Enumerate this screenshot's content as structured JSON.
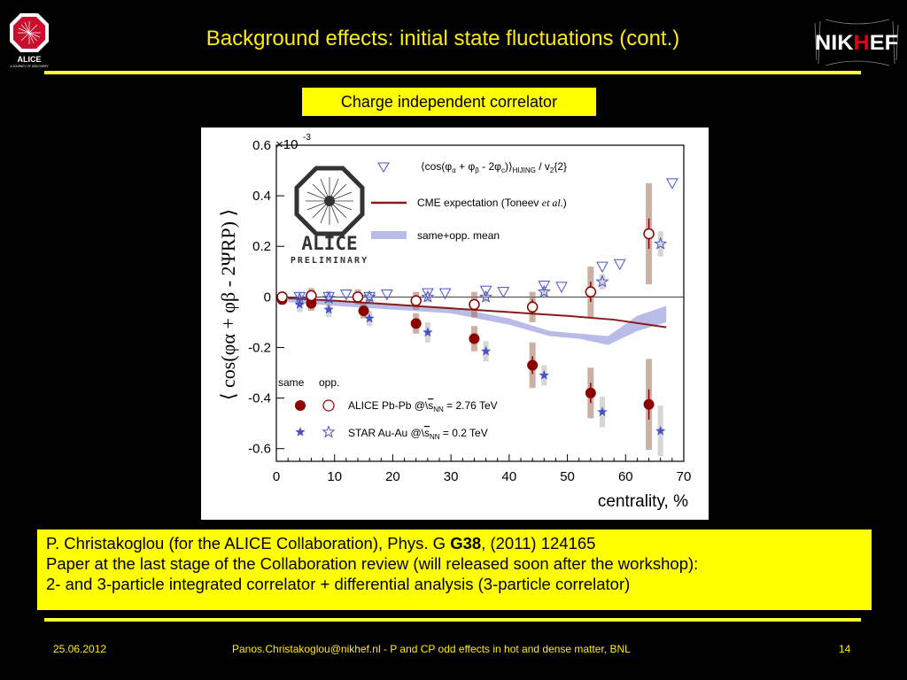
{
  "slide": {
    "title": "Background effects: initial state fluctuations (cont.)",
    "chart_label": "Charge independent correlator",
    "reference": {
      "line1_pre": "P. Christakoglou (for the ALICE Collaboration), Phys. G ",
      "line1_bold": "G38",
      "line1_post": ", (2011) 124165",
      "line2": "Paper at the last stage of the Collaboration review (will released soon after the workshop):",
      "line3": "2- and 3-particle integrated correlator + differential analysis (3-particle correlator)"
    },
    "footer": {
      "date": "25.06.2012",
      "center": "Panos.Christakoglou@nikhef.nl - P and CP odd effects in hot and dense matter, BNL",
      "page": "14"
    },
    "logos": {
      "alice_text": "ALICE",
      "alice_sub": "A JOURNEY OF DISCOVERY",
      "nikhef_text": "NIKHEF",
      "preliminary_alice": "ALICE",
      "preliminary_word": "PRELIMINARY"
    }
  },
  "colors": {
    "background": "#000000",
    "title": "#ffeb0a",
    "box": "#ffff00",
    "alice_red": "#8b0000",
    "star_blue": "#4a52c8",
    "hijing_band": "#b8bce6",
    "cme_line": "#8b1a1a"
  },
  "chart_data": {
    "type": "scatter",
    "xlabel": "centrality, %",
    "ylabel": "⟨ cos(φα + φβ - 2ΨRP) ⟩",
    "multiplier": "×10",
    "multiplier_exp": "-3",
    "xlim": [
      0,
      70
    ],
    "ylim": [
      -0.65,
      0.6
    ],
    "x_ticks": [
      0,
      10,
      20,
      30,
      40,
      50,
      60,
      70
    ],
    "y_ticks": [
      0.6,
      0.4,
      0.2,
      0,
      -0.2,
      -0.4,
      -0.6
    ],
    "y_tick_labels": [
      "0.6",
      "0.4",
      "0.2",
      "0",
      "-0.2",
      "-0.4",
      "-0.6"
    ],
    "legend": {
      "hijing_pre": "⟨cos(φ",
      "hijing_mid": " + φ",
      "hijing_post": " - 2φ",
      "hijing_tail": ")⟩",
      "hijing_sub": "HIJING",
      "hijing_end": " / v",
      "hijing_end_sub": "2",
      "hijing_end_tail": "{2}",
      "cme": "CME expectation (Toneev ",
      "cme_italic": "et al.",
      "cme_tail": ")",
      "mean": "same+opp. mean",
      "same": "same",
      "opp": "opp.",
      "alice": "ALICE Pb-Pb @",
      "alice_sqrt": "s",
      "alice_sub": "NN",
      "alice_val": " = 2.76 TeV",
      "star": "STAR Au-Au @",
      "star_sqrt": "s",
      "star_sub": "NN",
      "star_val": " = 0.2 TeV"
    },
    "series": [
      {
        "name": "ALICE Pb-Pb same",
        "marker": "filled-circle",
        "x": [
          1,
          6,
          15,
          24,
          34,
          44,
          54,
          64
        ],
        "y": [
          -0.01,
          -0.025,
          -0.055,
          -0.105,
          -0.165,
          -0.27,
          -0.38,
          -0.425
        ],
        "sys_band": [
          0.02,
          0.03,
          0.03,
          0.04,
          0.05,
          0.09,
          0.1,
          0.18
        ],
        "stat_err": [
          0.005,
          0.006,
          0.01,
          0.012,
          0.02,
          0.035,
          0.04,
          0.06
        ]
      },
      {
        "name": "ALICE Pb-Pb opp.",
        "marker": "open-circle",
        "x": [
          1,
          6,
          14,
          24,
          34,
          44,
          54,
          64
        ],
        "y": [
          0.0,
          0.005,
          0.0,
          -0.015,
          -0.03,
          -0.04,
          0.02,
          0.25
        ],
        "sys_band": [
          0.02,
          0.03,
          0.03,
          0.035,
          0.05,
          0.06,
          0.1,
          0.2
        ],
        "stat_err": [
          0.005,
          0.006,
          0.01,
          0.012,
          0.02,
          0.03,
          0.04,
          0.06
        ]
      },
      {
        "name": "STAR Au-Au same",
        "marker": "filled-star",
        "x": [
          4,
          9,
          16,
          26,
          36,
          46,
          56,
          66
        ],
        "y": [
          -0.03,
          -0.05,
          -0.085,
          -0.14,
          -0.215,
          -0.31,
          -0.455,
          -0.53
        ],
        "sys_band": [
          0.03,
          0.03,
          0.03,
          0.04,
          0.04,
          0.04,
          0.06,
          0.1
        ]
      },
      {
        "name": "STAR Au-Au opp.",
        "marker": "open-star",
        "x": [
          4,
          9,
          16,
          26,
          36,
          46,
          56,
          66
        ],
        "y": [
          -0.01,
          -0.005,
          0.0,
          0.0,
          0.0,
          0.02,
          0.06,
          0.21
        ],
        "sys_band": [
          0.03,
          0.03,
          0.02,
          0.02,
          0.02,
          0.02,
          0.03,
          0.05
        ]
      },
      {
        "name": "HIJING",
        "marker": "open-triangle-down",
        "x": [
          4,
          9,
          12,
          16,
          19,
          26,
          29,
          36,
          39,
          46,
          49,
          56,
          59,
          68
        ],
        "y": [
          0.0,
          0.0,
          0.01,
          0.0,
          0.01,
          0.015,
          0.015,
          0.025,
          0.02,
          0.045,
          0.04,
          0.12,
          0.13,
          0.45
        ]
      },
      {
        "name": "CME expectation",
        "type": "line",
        "x": [
          2,
          10,
          20,
          30,
          40,
          50,
          58,
          67
        ],
        "y": [
          -0.005,
          -0.015,
          -0.03,
          -0.045,
          -0.06,
          -0.075,
          -0.09,
          -0.12
        ]
      },
      {
        "name": "same+opp. mean",
        "type": "band",
        "x": [
          2,
          10,
          20,
          30,
          40,
          47,
          52,
          57,
          62,
          67
        ],
        "lo": [
          -0.02,
          -0.035,
          -0.05,
          -0.065,
          -0.11,
          -0.155,
          -0.165,
          -0.19,
          -0.135,
          -0.1
        ],
        "hi": [
          -0.005,
          -0.015,
          -0.03,
          -0.04,
          -0.085,
          -0.135,
          -0.145,
          -0.155,
          -0.075,
          -0.035
        ]
      }
    ]
  }
}
